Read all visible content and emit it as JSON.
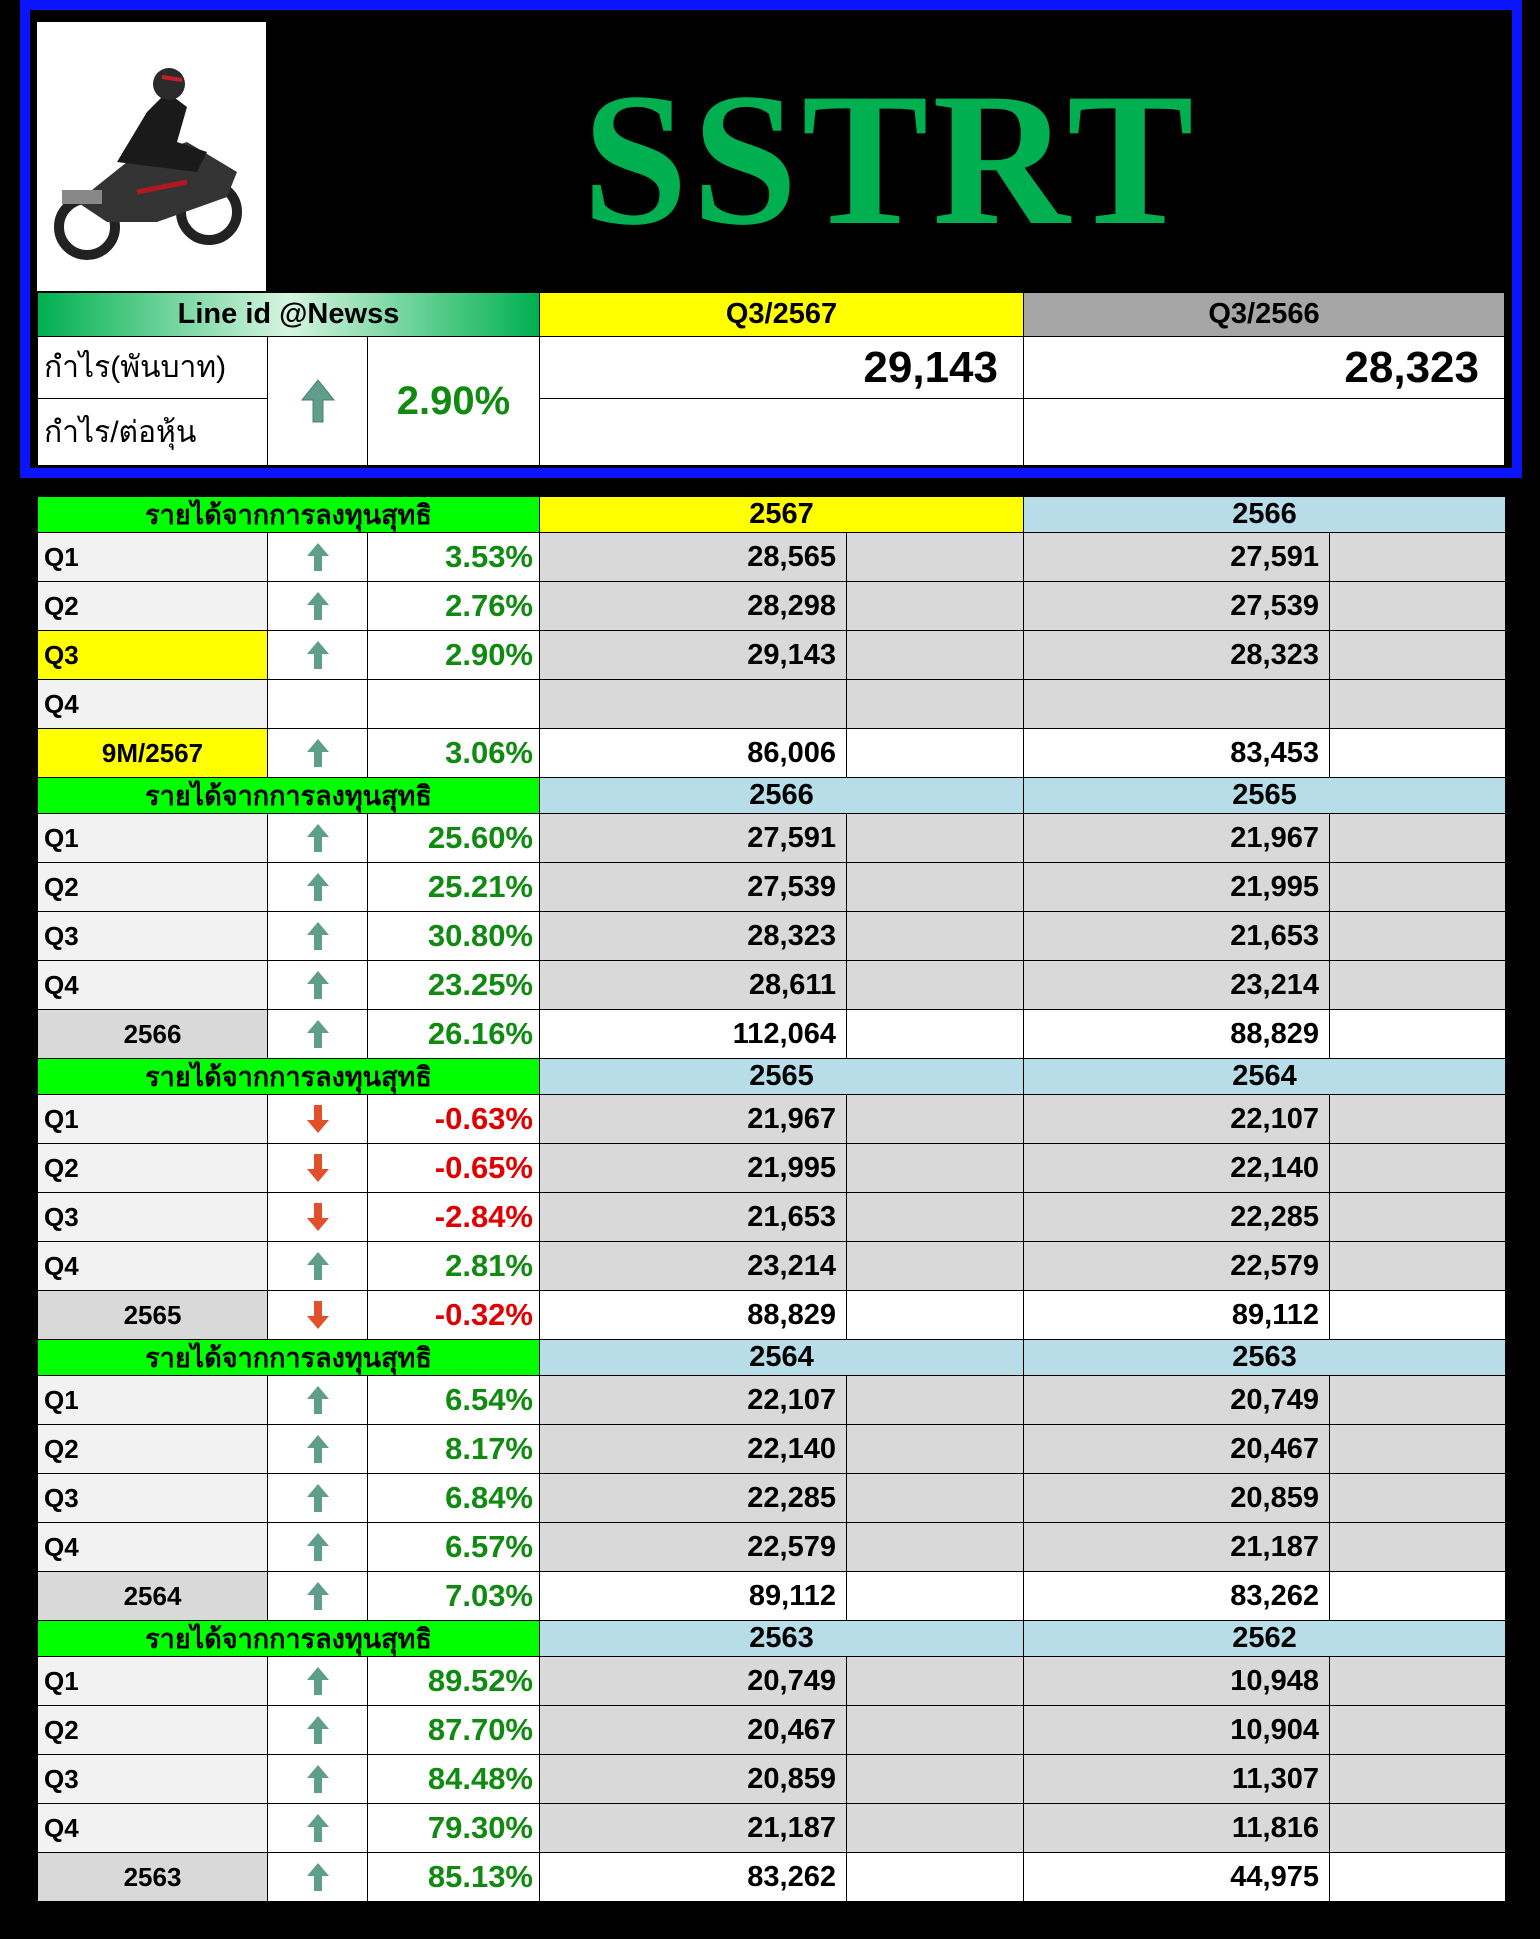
{
  "title": "SSTRT",
  "summary": {
    "line_id": "Line id @Newss",
    "col_current": "Q3/2567",
    "col_previous": "Q3/2566",
    "row_profit": "กำไร(พันบาท)",
    "row_eps": "กำไร/ต่อหุ้น",
    "direction": "up",
    "change": "2.90%",
    "profit_current": "29,143",
    "profit_previous": "28,323",
    "eps_current": "",
    "eps_previous": ""
  },
  "colors": {
    "frame": "#0a14ff",
    "title": "#00b050",
    "green_header": "#00ff00",
    "yellow": "#ffff00",
    "light_blue": "#b7dde8",
    "gray_header": "#a6a6a6",
    "up_arrow": "#5f9e8a",
    "down_arrow": "#e0502a",
    "positive": "#118a11",
    "negative": "#e00000"
  },
  "sections": [
    {
      "label": "รายได้จากการลงทุนสุทธิ",
      "col_a": "2567",
      "col_b": "2566",
      "col_a_color": "#ffff00",
      "rows": [
        {
          "q": "Q1",
          "dir": "up",
          "pct": "3.53%",
          "a": "28,565",
          "b": "27,591"
        },
        {
          "q": "Q2",
          "dir": "up",
          "pct": "2.76%",
          "a": "28,298",
          "b": "27,539"
        },
        {
          "q": "Q3",
          "dir": "up",
          "pct": "2.90%",
          "a": "29,143",
          "b": "28,323",
          "highlight": true
        },
        {
          "q": "Q4",
          "dir": "",
          "pct": "",
          "a": "",
          "b": ""
        },
        {
          "q": "9M/2567",
          "dir": "up",
          "pct": "3.06%",
          "a": "86,006",
          "b": "83,453",
          "total": true,
          "highlight": true
        }
      ]
    },
    {
      "label": "รายได้จากการลงทุนสุทธิ",
      "col_a": "2566",
      "col_b": "2565",
      "rows": [
        {
          "q": "Q1",
          "dir": "up",
          "pct": "25.60%",
          "a": "27,591",
          "b": "21,967"
        },
        {
          "q": "Q2",
          "dir": "up",
          "pct": "25.21%",
          "a": "27,539",
          "b": "21,995"
        },
        {
          "q": "Q3",
          "dir": "up",
          "pct": "30.80%",
          "a": "28,323",
          "b": "21,653"
        },
        {
          "q": "Q4",
          "dir": "up",
          "pct": "23.25%",
          "a": "28,611",
          "b": "23,214"
        },
        {
          "q": "2566",
          "dir": "up",
          "pct": "26.16%",
          "a": "112,064",
          "b": "88,829",
          "total": true
        }
      ]
    },
    {
      "label": "รายได้จากการลงทุนสุทธิ",
      "col_a": "2565",
      "col_b": "2564",
      "rows": [
        {
          "q": "Q1",
          "dir": "down",
          "pct": "-0.63%",
          "a": "21,967",
          "b": "22,107"
        },
        {
          "q": "Q2",
          "dir": "down",
          "pct": "-0.65%",
          "a": "21,995",
          "b": "22,140"
        },
        {
          "q": "Q3",
          "dir": "down",
          "pct": "-2.84%",
          "a": "21,653",
          "b": "22,285"
        },
        {
          "q": "Q4",
          "dir": "up",
          "pct": "2.81%",
          "a": "23,214",
          "b": "22,579"
        },
        {
          "q": "2565",
          "dir": "down",
          "pct": "-0.32%",
          "a": "88,829",
          "b": "89,112",
          "total": true
        }
      ]
    },
    {
      "label": "รายได้จากการลงทุนสุทธิ",
      "col_a": "2564",
      "col_b": "2563",
      "rows": [
        {
          "q": "Q1",
          "dir": "up",
          "pct": "6.54%",
          "a": "22,107",
          "b": "20,749"
        },
        {
          "q": "Q2",
          "dir": "up",
          "pct": "8.17%",
          "a": "22,140",
          "b": "20,467"
        },
        {
          "q": "Q3",
          "dir": "up",
          "pct": "6.84%",
          "a": "22,285",
          "b": "20,859"
        },
        {
          "q": "Q4",
          "dir": "up",
          "pct": "6.57%",
          "a": "22,579",
          "b": "21,187"
        },
        {
          "q": "2564",
          "dir": "up",
          "pct": "7.03%",
          "a": "89,112",
          "b": "83,262",
          "total": true
        }
      ]
    },
    {
      "label": "รายได้จากการลงทุนสุทธิ",
      "col_a": "2563",
      "col_b": "2562",
      "rows": [
        {
          "q": "Q1",
          "dir": "up",
          "pct": "89.52%",
          "a": "20,749",
          "b": "10,948"
        },
        {
          "q": "Q2",
          "dir": "up",
          "pct": "87.70%",
          "a": "20,467",
          "b": "10,904"
        },
        {
          "q": "Q3",
          "dir": "up",
          "pct": "84.48%",
          "a": "20,859",
          "b": "11,307"
        },
        {
          "q": "Q4",
          "dir": "up",
          "pct": "79.30%",
          "a": "21,187",
          "b": "11,816"
        },
        {
          "q": "2563",
          "dir": "up",
          "pct": "85.13%",
          "a": "83,262",
          "b": "44,975",
          "total": true
        }
      ]
    }
  ]
}
